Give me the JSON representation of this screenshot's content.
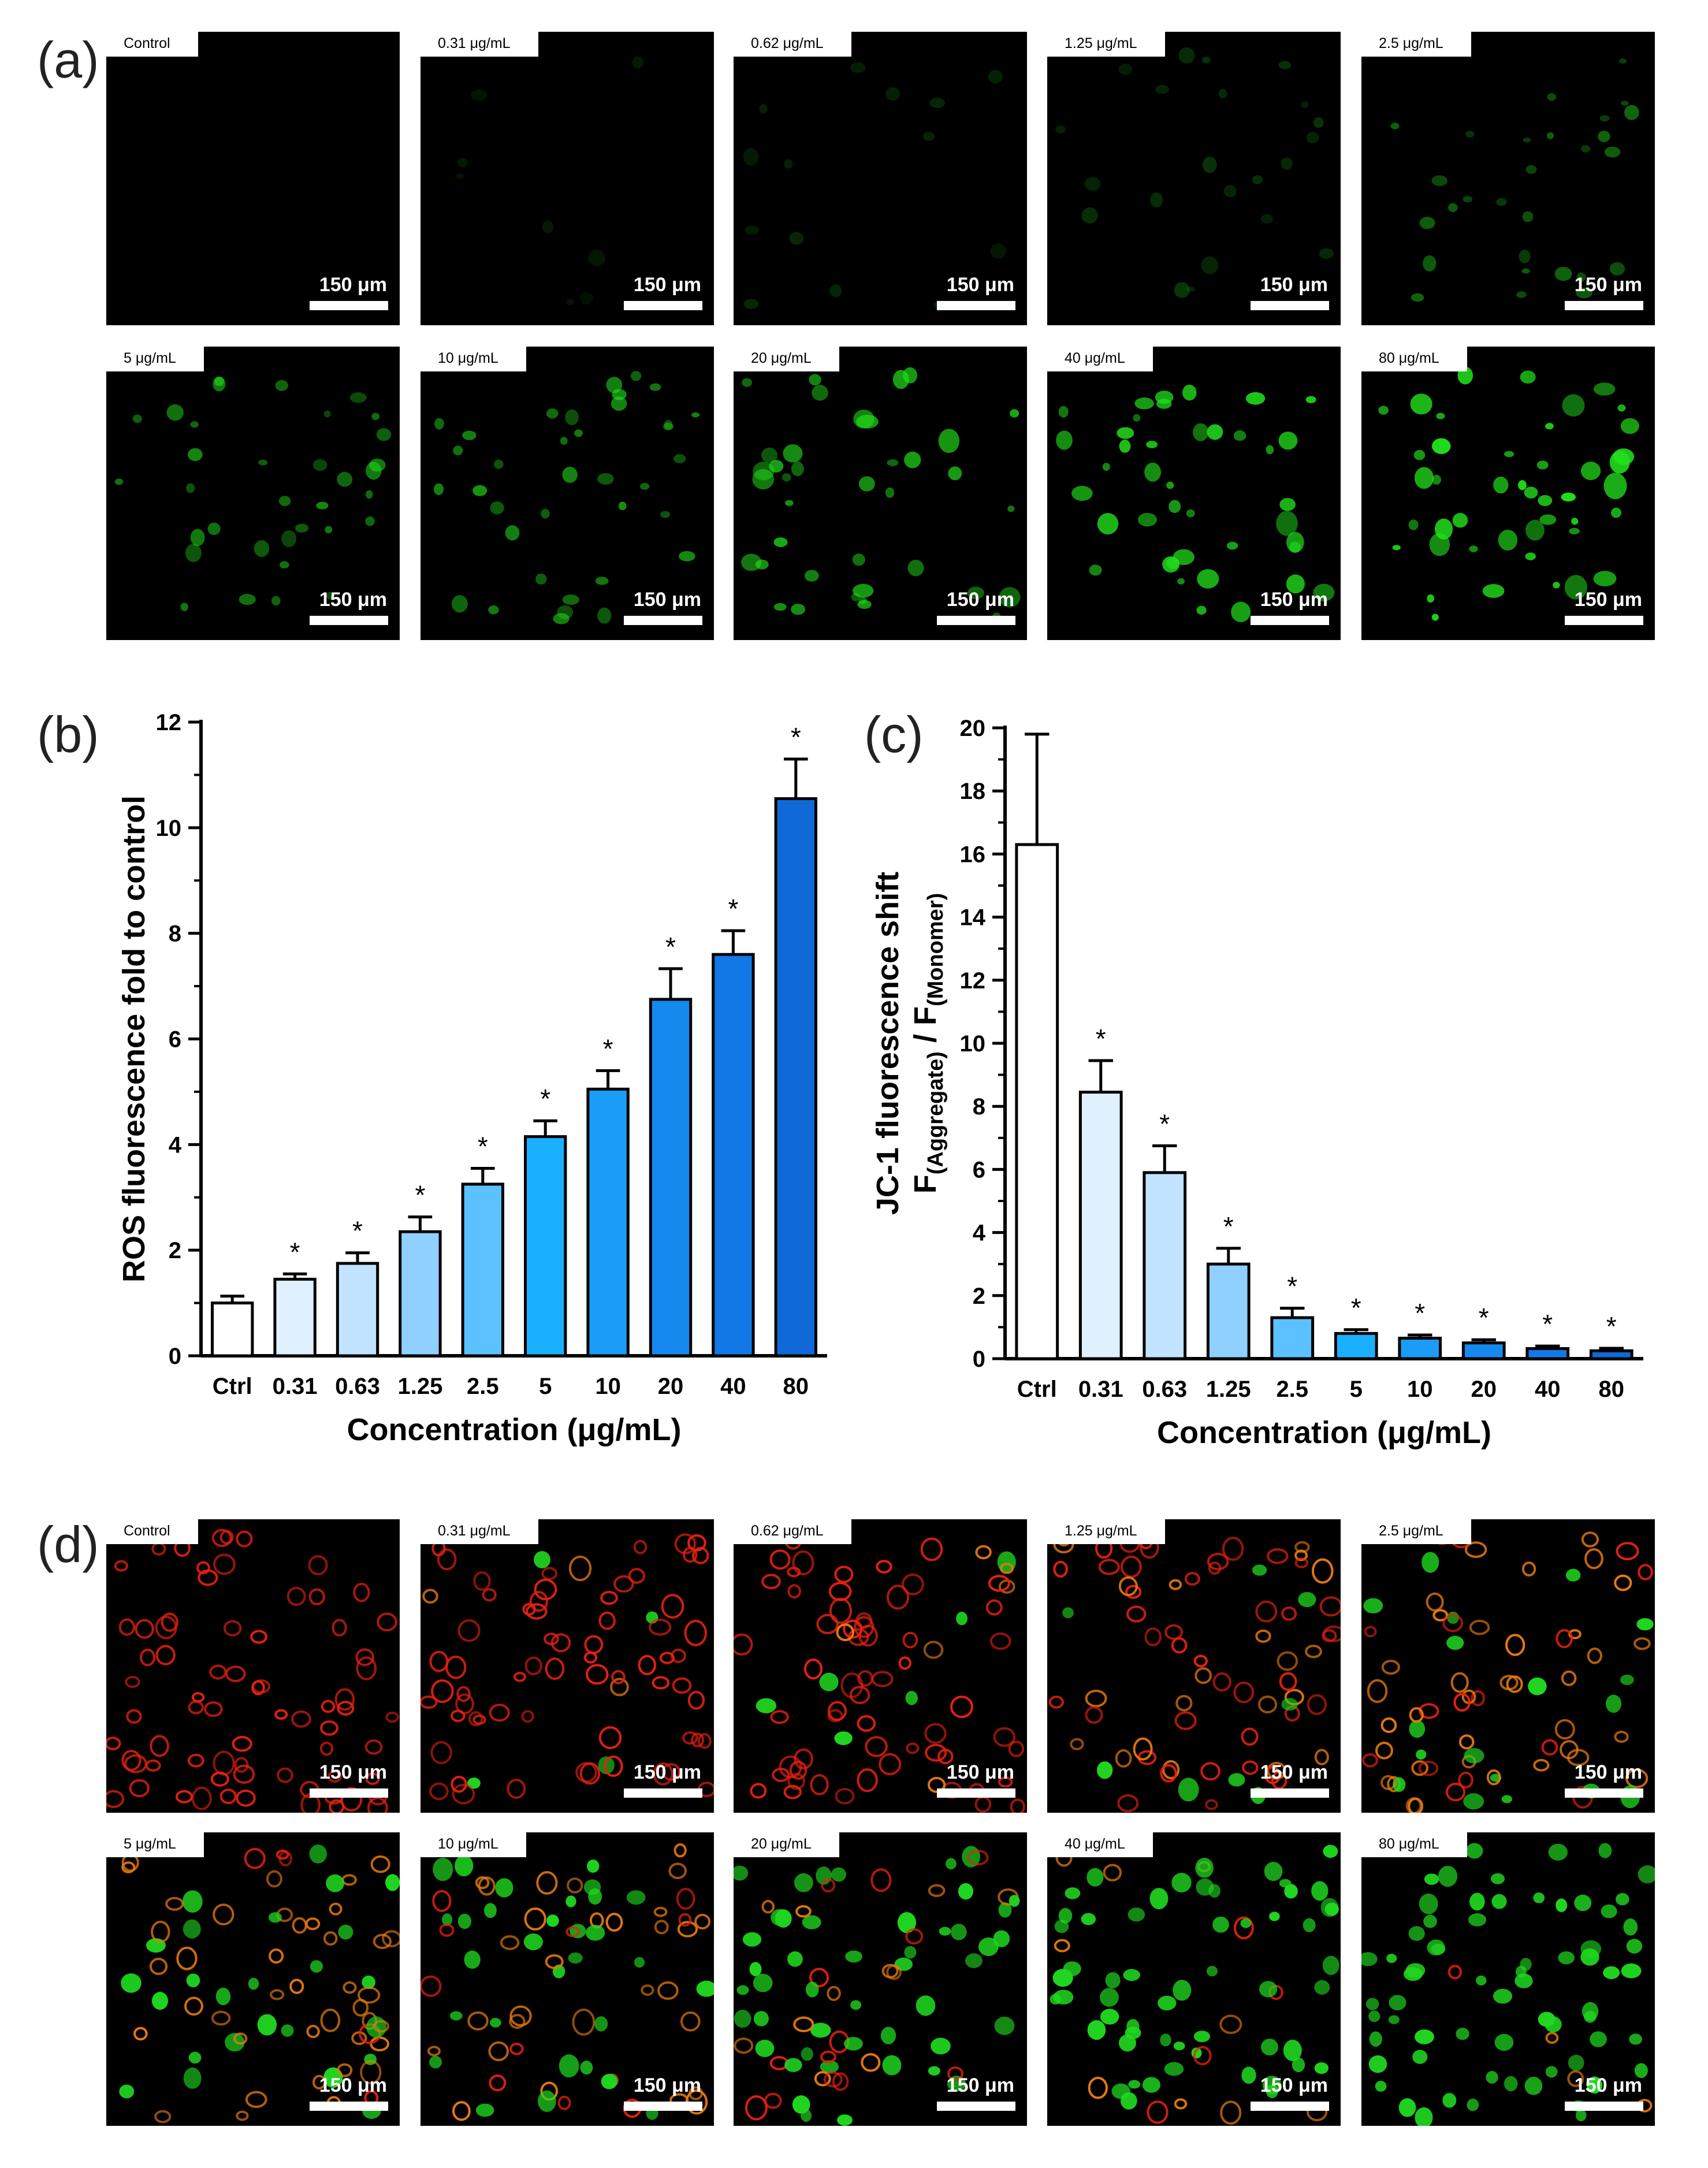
{
  "panels": {
    "a": "(a)",
    "b": "(b)",
    "c": "(c)",
    "d": "(d)"
  },
  "micrographs": {
    "ros_labels": [
      "Control",
      "0.31 μg/mL",
      "0.62 μg/mL",
      "1.25 μg/mL",
      "2.5 μg/mL",
      "5 μg/mL",
      "10 μg/mL",
      "20 μg/mL",
      "40 μg/mL",
      "80 μg/mL"
    ],
    "jc1_labels": [
      "Control",
      "0.31 μg/mL",
      "0.62 μg/mL",
      "1.25 μg/mL",
      "2.5 μg/mL",
      "5 μg/mL",
      "10 μg/mL",
      "20 μg/mL",
      "40 μg/mL",
      "80 μg/mL"
    ],
    "scale_bar_label": "150 μm",
    "colors": {
      "ros_green": "#22e01c",
      "jc1_red": "#e8200f",
      "jc1_orange": "#e87a10",
      "jc1_green": "#20d820",
      "background": "#000000"
    }
  },
  "chart_data": [
    {
      "type": "bar",
      "panel": "b",
      "categories": [
        "Ctrl",
        "0.31",
        "0.63",
        "1.25",
        "2.5",
        "5",
        "10",
        "20",
        "40",
        "80"
      ],
      "values": [
        1.0,
        1.45,
        1.75,
        2.35,
        3.25,
        4.15,
        5.05,
        6.75,
        7.6,
        10.55
      ],
      "errors": [
        0.13,
        0.1,
        0.2,
        0.28,
        0.3,
        0.3,
        0.35,
        0.58,
        0.45,
        0.75
      ],
      "significance": [
        "",
        "*",
        "*",
        "*",
        "*",
        "*",
        "*",
        "*",
        "*",
        "*"
      ],
      "xlabel": "Concentration (μg/mL)",
      "ylabel": "ROS fluorescence fold to control",
      "ylim": [
        0,
        12
      ],
      "yticks": [
        0,
        2,
        4,
        6,
        8,
        10,
        12
      ],
      "bar_colors": [
        "#ffffff",
        "#dff0ff",
        "#c2e3ff",
        "#8fd0ff",
        "#5cc2ff",
        "#1ab0ff",
        "#1a9cf7",
        "#1689ef",
        "#1278e6",
        "#0f6ad8"
      ],
      "grid": false
    },
    {
      "type": "bar",
      "panel": "c",
      "categories": [
        "Ctrl",
        "0.31",
        "0.63",
        "1.25",
        "2.5",
        "5",
        "10",
        "20",
        "40",
        "80"
      ],
      "values": [
        16.3,
        8.45,
        5.9,
        3.0,
        1.3,
        0.8,
        0.65,
        0.5,
        0.32,
        0.25
      ],
      "errors": [
        3.5,
        1.0,
        0.85,
        0.5,
        0.3,
        0.12,
        0.1,
        0.1,
        0.08,
        0.08
      ],
      "significance": [
        "",
        "*",
        "*",
        "*",
        "*",
        "*",
        "*",
        "*",
        "*",
        "*"
      ],
      "xlabel": "Concentration (μg/mL)",
      "ylabel_line1": "JC-1 fluorescence shift",
      "ylabel_line2_main": "F",
      "ylabel_line2_sub1": "(Aggregate)",
      "ylabel_line2_sep": " / F",
      "ylabel_line2_sub2": "(Monomer)",
      "ylim": [
        0,
        20
      ],
      "yticks": [
        0,
        2,
        4,
        6,
        8,
        10,
        12,
        14,
        16,
        18,
        20
      ],
      "bar_colors": [
        "#ffffff",
        "#dff0ff",
        "#c2e3ff",
        "#8fd0ff",
        "#5cc2ff",
        "#1ab0ff",
        "#1a9cf7",
        "#1689ef",
        "#1278e6",
        "#0f6ad8"
      ],
      "grid": false
    }
  ]
}
